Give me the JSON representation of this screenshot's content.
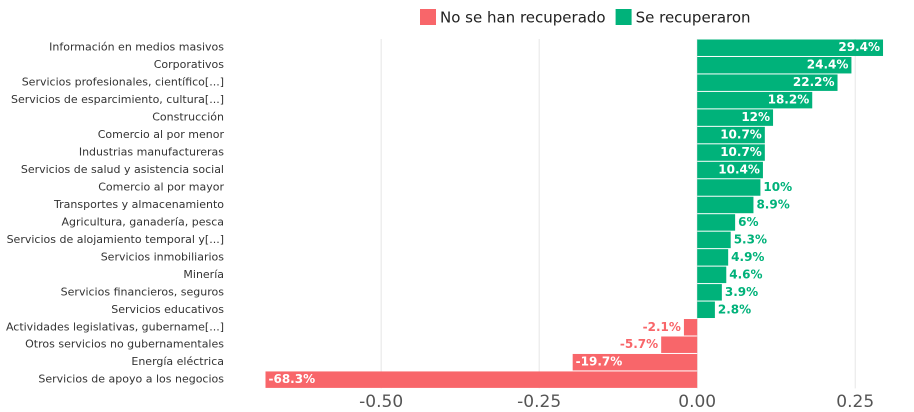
{
  "chart_data": {
    "type": "barh",
    "categories": [
      "Información en medios masivos",
      "Corporativos",
      "Servicios profesionales, científico[...]",
      "Servicios de esparcimiento, cultura[...]",
      "Construcción",
      "Comercio al por menor",
      "Industrias manufactureras",
      "Servicios de salud y asistencia social",
      "Comercio al por mayor",
      "Transportes y almacenamiento",
      "Agricultura, ganadería, pesca",
      "Servicios de alojamiento temporal y[...]",
      "Servicios inmobiliarios",
      "Minería",
      "Servicios financieros, seguros",
      "Servicios educativos",
      "Actividades legislativas, gubername[...]",
      "Otros servicios no gubernamentales",
      "Energía eléctrica",
      "Servicios de apoyo a los negocios"
    ],
    "values": [
      0.294,
      0.244,
      0.222,
      0.182,
      0.12,
      0.107,
      0.107,
      0.104,
      0.1,
      0.089,
      0.06,
      0.053,
      0.049,
      0.046,
      0.039,
      0.028,
      -0.021,
      -0.057,
      -0.197,
      -0.683
    ],
    "value_labels": [
      "29.4%",
      "24.4%",
      "22.2%",
      "18.2%",
      "12%",
      "10.7%",
      "10.7%",
      "10.4%",
      "10%",
      "8.9%",
      "6%",
      "5.3%",
      "4.9%",
      "4.6%",
      "3.9%",
      "2.8%",
      "-2.1%",
      "-5.7%",
      "-19.7%",
      "-68.3%"
    ],
    "legend": [
      {
        "name": "No se han recuperado",
        "color": "#f8666a"
      },
      {
        "name": "Se recuperaron",
        "color": "#00b27a"
      }
    ],
    "xlim": [
      -0.736,
      0.343
    ],
    "xticks": [
      {
        "value": -0.5,
        "label": "-0.50"
      },
      {
        "value": -0.25,
        "label": "-0.25"
      },
      {
        "value": 0,
        "label": "0.00"
      },
      {
        "value": 0.25,
        "label": "0.25"
      }
    ],
    "grid": true
  }
}
